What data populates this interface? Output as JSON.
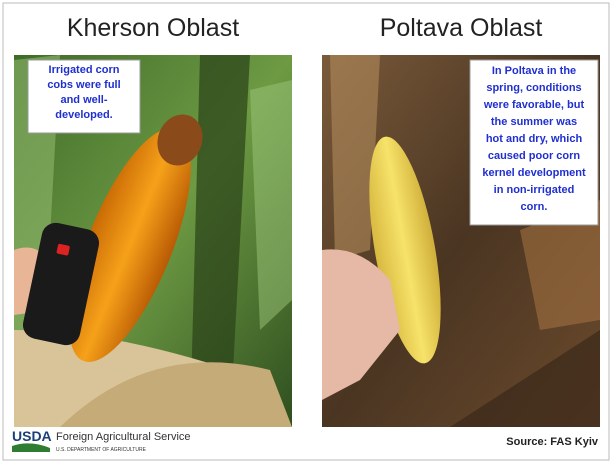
{
  "panels": [
    {
      "title": "Kherson Oblast",
      "caption": [
        "Irrigated corn",
        "cobs were full",
        "and well-",
        "developed."
      ]
    },
    {
      "title": "Poltava Oblast",
      "caption": [
        "In Poltava in the",
        "spring, conditions",
        "were favorable, but",
        "the summer was",
        "hot and dry, which",
        "caused poor corn",
        "kernel development",
        "in non-irrigated",
        "corn."
      ]
    }
  ],
  "footer": {
    "logo": "USDA",
    "agency": "Foreign Agricultural Service",
    "department": "U.S. DEPARTMENT OF AGRICULTURE",
    "source": "Source: FAS Kyiv"
  }
}
